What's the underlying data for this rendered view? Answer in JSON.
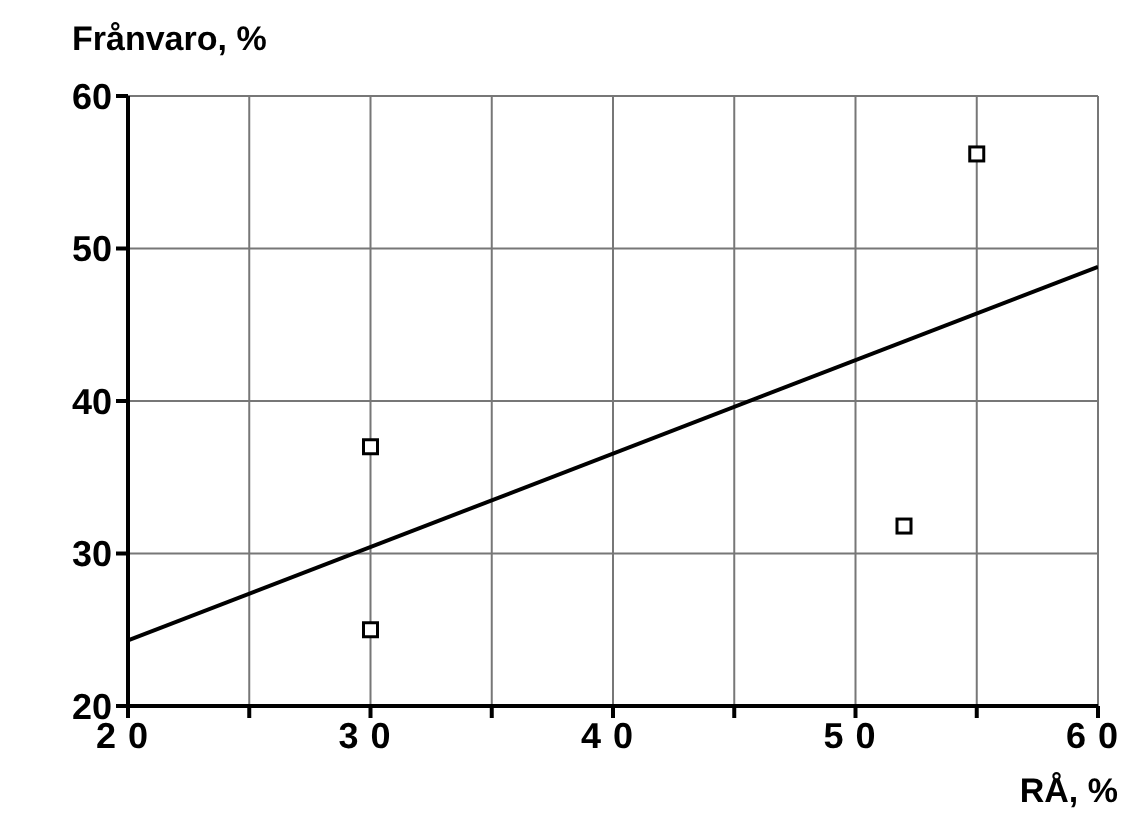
{
  "chart_data": {
    "type": "scatter",
    "xlabel": "RÅ, %",
    "ylabel": "Frånvaro, %",
    "series": [
      {
        "color": "#000000",
        "x": [
          30,
          30,
          52,
          55
        ],
        "values": [
          37,
          25,
          31.8,
          56.2
        ]
      },
      {
        "type": "line",
        "color": "#000000",
        "x": [
          20,
          60
        ],
        "values": [
          24.3,
          48.8
        ],
        "marker": "none"
      }
    ],
    "xlim": [
      20,
      60
    ],
    "xticks": [
      20,
      {
        "value": 25,
        "label": null
      },
      30,
      {
        "value": 35,
        "label": null
      },
      40,
      {
        "value": 45,
        "label": null
      },
      50,
      {
        "value": 55,
        "label": null
      },
      60
    ],
    "ylim": [
      20,
      60
    ],
    "yticks": [
      20,
      30,
      40,
      50,
      60
    ],
    "grid": true,
    "marker": "square",
    "line_style": "solid",
    "legend": false
  }
}
